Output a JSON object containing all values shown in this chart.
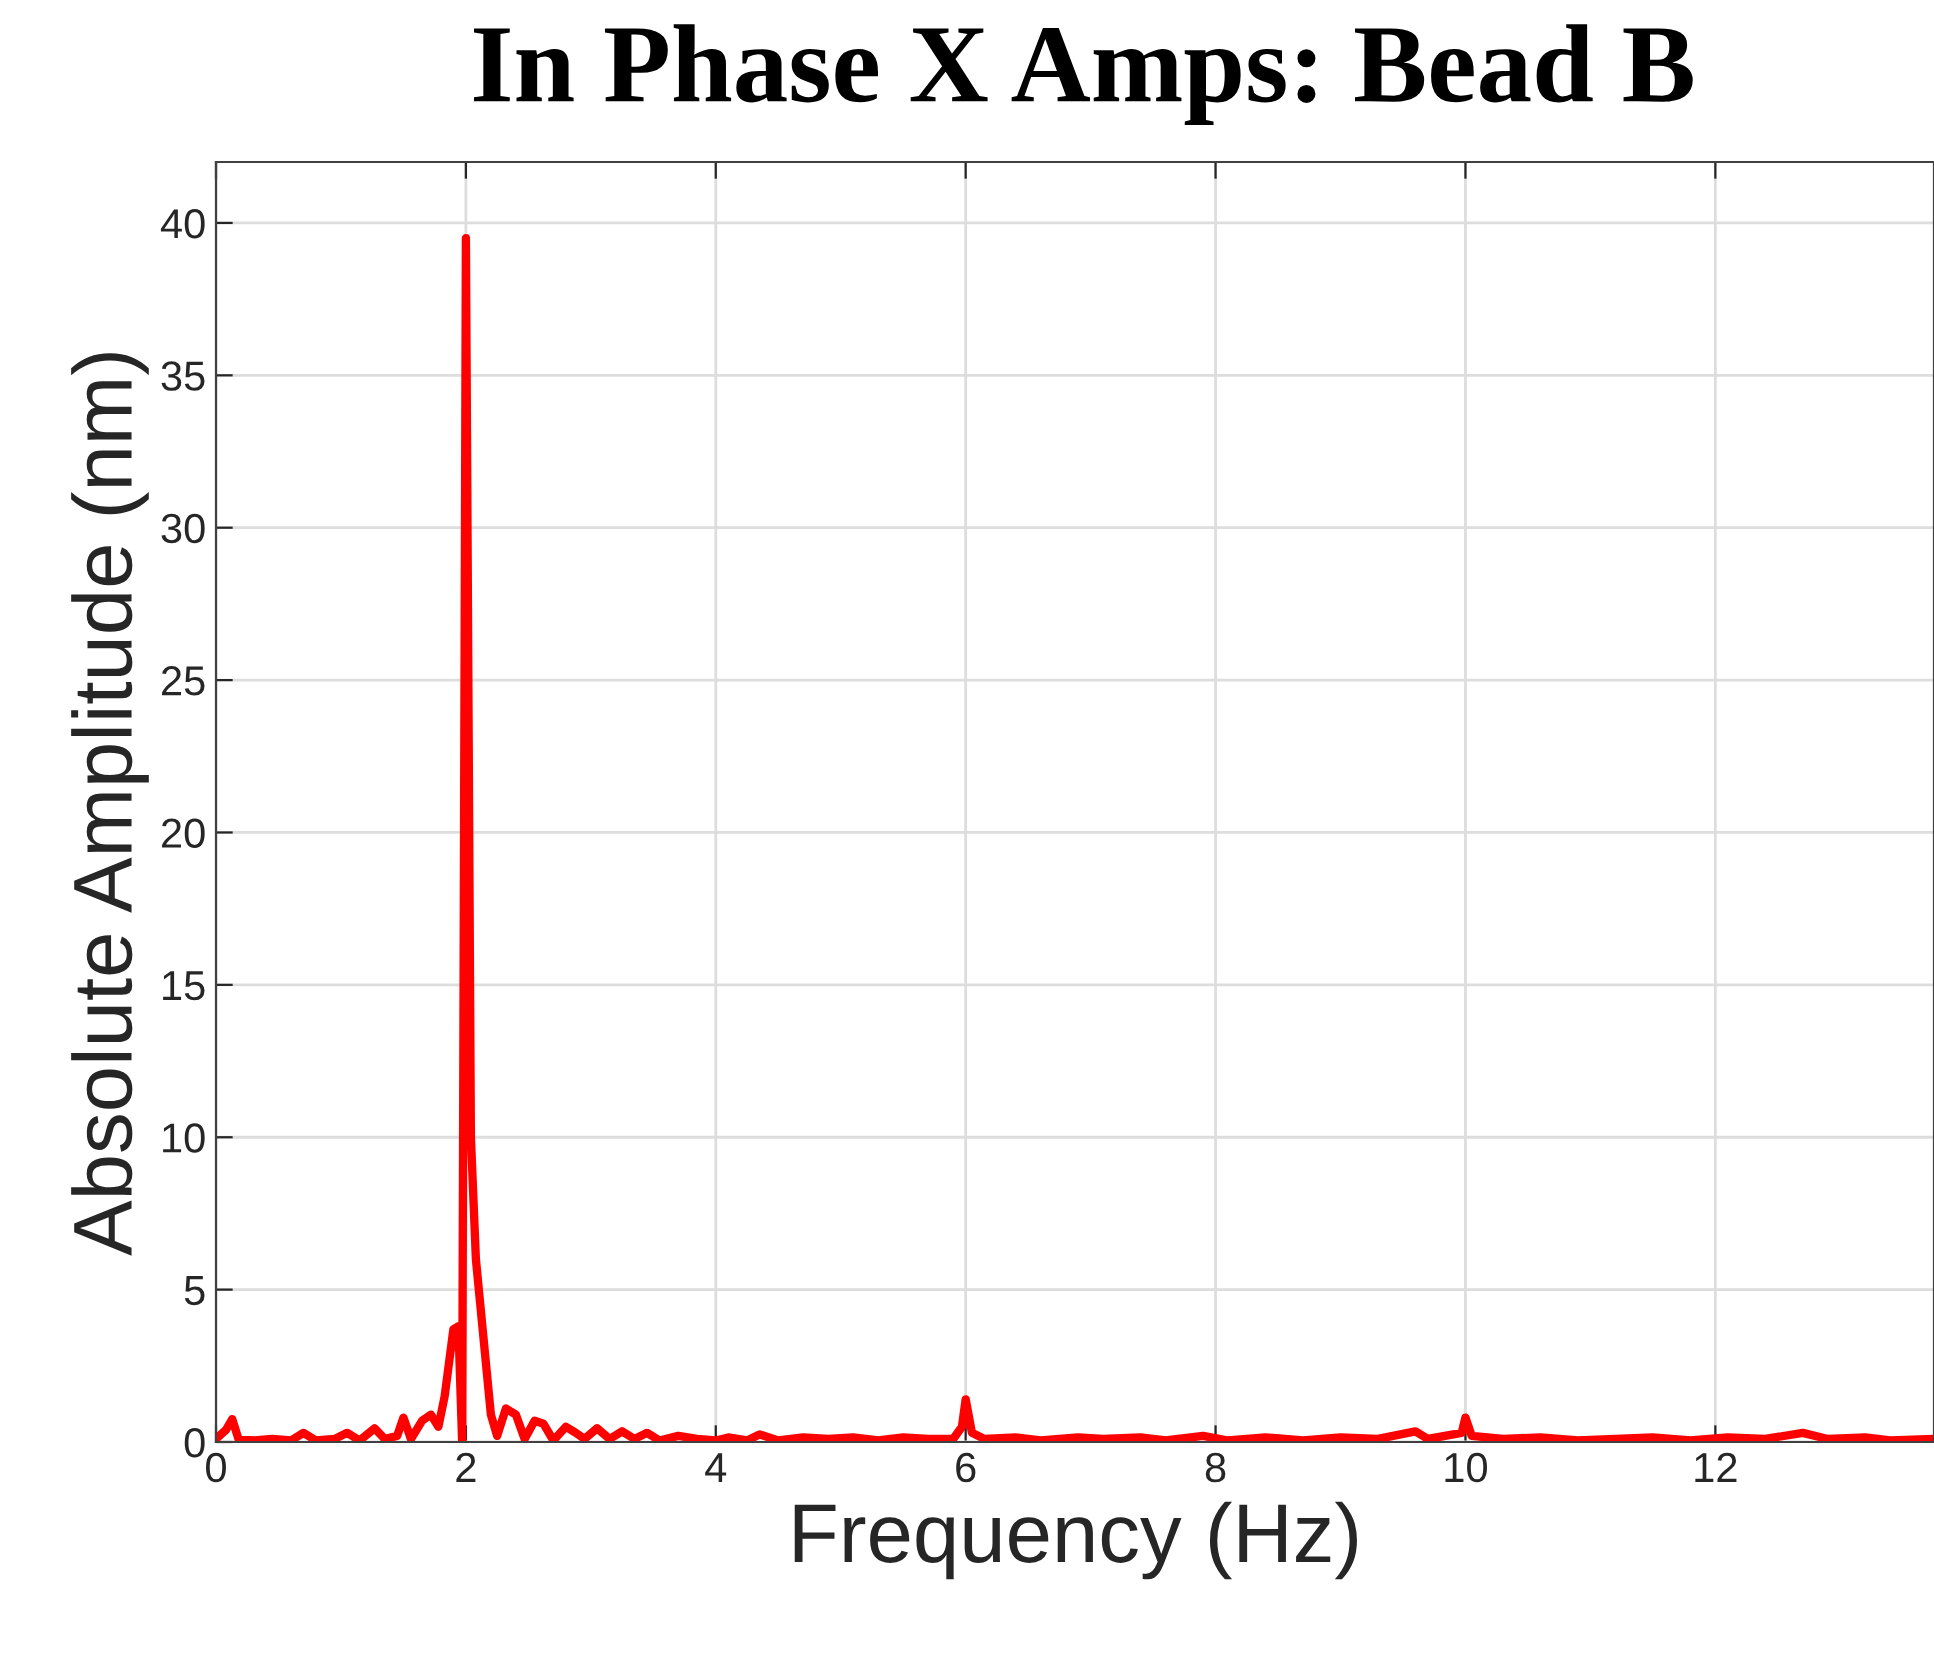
{
  "chart_data": {
    "type": "line",
    "title": "In Phase X Amps: Bead B",
    "xlabel": "Frequency (Hz)",
    "ylabel": "Absolute Amplitude (nm)",
    "xlim": [
      0,
      13.75
    ],
    "xticks": [
      0,
      2,
      4,
      6,
      8,
      10,
      12
    ],
    "ylim": [
      0,
      42
    ],
    "yticks": [
      0,
      5,
      10,
      15,
      20,
      25,
      30,
      35,
      40
    ],
    "grid": true,
    "series": [
      {
        "color": "#ff0000",
        "x": [
          0,
          0.08,
          0.13,
          0.18,
          0.3,
          0.45,
          0.6,
          0.7,
          0.8,
          0.95,
          1.05,
          1.15,
          1.27,
          1.35,
          1.45,
          1.5,
          1.56,
          1.65,
          1.72,
          1.78,
          1.83,
          1.9,
          1.94,
          1.97,
          2.0,
          2.04,
          2.08,
          2.2,
          2.25,
          2.32,
          2.4,
          2.47,
          2.55,
          2.62,
          2.7,
          2.8,
          2.88,
          2.95,
          3.05,
          3.15,
          3.25,
          3.35,
          3.45,
          3.55,
          3.7,
          3.85,
          4.0,
          4.1,
          4.25,
          4.35,
          4.5,
          4.7,
          4.9,
          5.1,
          5.3,
          5.5,
          5.7,
          5.9,
          5.97,
          6.0,
          6.05,
          6.15,
          6.4,
          6.6,
          6.9,
          7.1,
          7.4,
          7.6,
          7.9,
          8.1,
          8.4,
          8.7,
          9.0,
          9.3,
          9.6,
          9.7,
          9.97,
          10.0,
          10.05,
          10.3,
          10.6,
          10.9,
          11.2,
          11.5,
          11.8,
          12.1,
          12.4,
          12.7,
          12.9,
          13.2,
          13.4,
          13.75
        ],
        "values": [
          0.1,
          0.4,
          0.75,
          0.1,
          0.05,
          0.1,
          0.05,
          0.3,
          0.05,
          0.1,
          0.3,
          0.05,
          0.45,
          0.1,
          0.2,
          0.8,
          0.1,
          0.7,
          0.9,
          0.5,
          1.5,
          3.7,
          3.8,
          0.0,
          39.5,
          10,
          6,
          0.9,
          0.2,
          1.1,
          0.9,
          0.1,
          0.7,
          0.6,
          0.05,
          0.5,
          0.3,
          0.1,
          0.45,
          0.1,
          0.35,
          0.1,
          0.3,
          0.05,
          0.2,
          0.1,
          0.05,
          0.15,
          0.05,
          0.25,
          0.05,
          0.15,
          0.1,
          0.15,
          0.05,
          0.15,
          0.1,
          0.1,
          0.5,
          1.4,
          0.3,
          0.1,
          0.15,
          0.05,
          0.15,
          0.1,
          0.15,
          0.05,
          0.2,
          0.05,
          0.15,
          0.05,
          0.15,
          0.1,
          0.35,
          0.1,
          0.3,
          0.8,
          0.2,
          0.1,
          0.15,
          0.05,
          0.1,
          0.15,
          0.05,
          0.15,
          0.1,
          0.3,
          0.1,
          0.15,
          0.05,
          0.1
        ]
      }
    ]
  }
}
